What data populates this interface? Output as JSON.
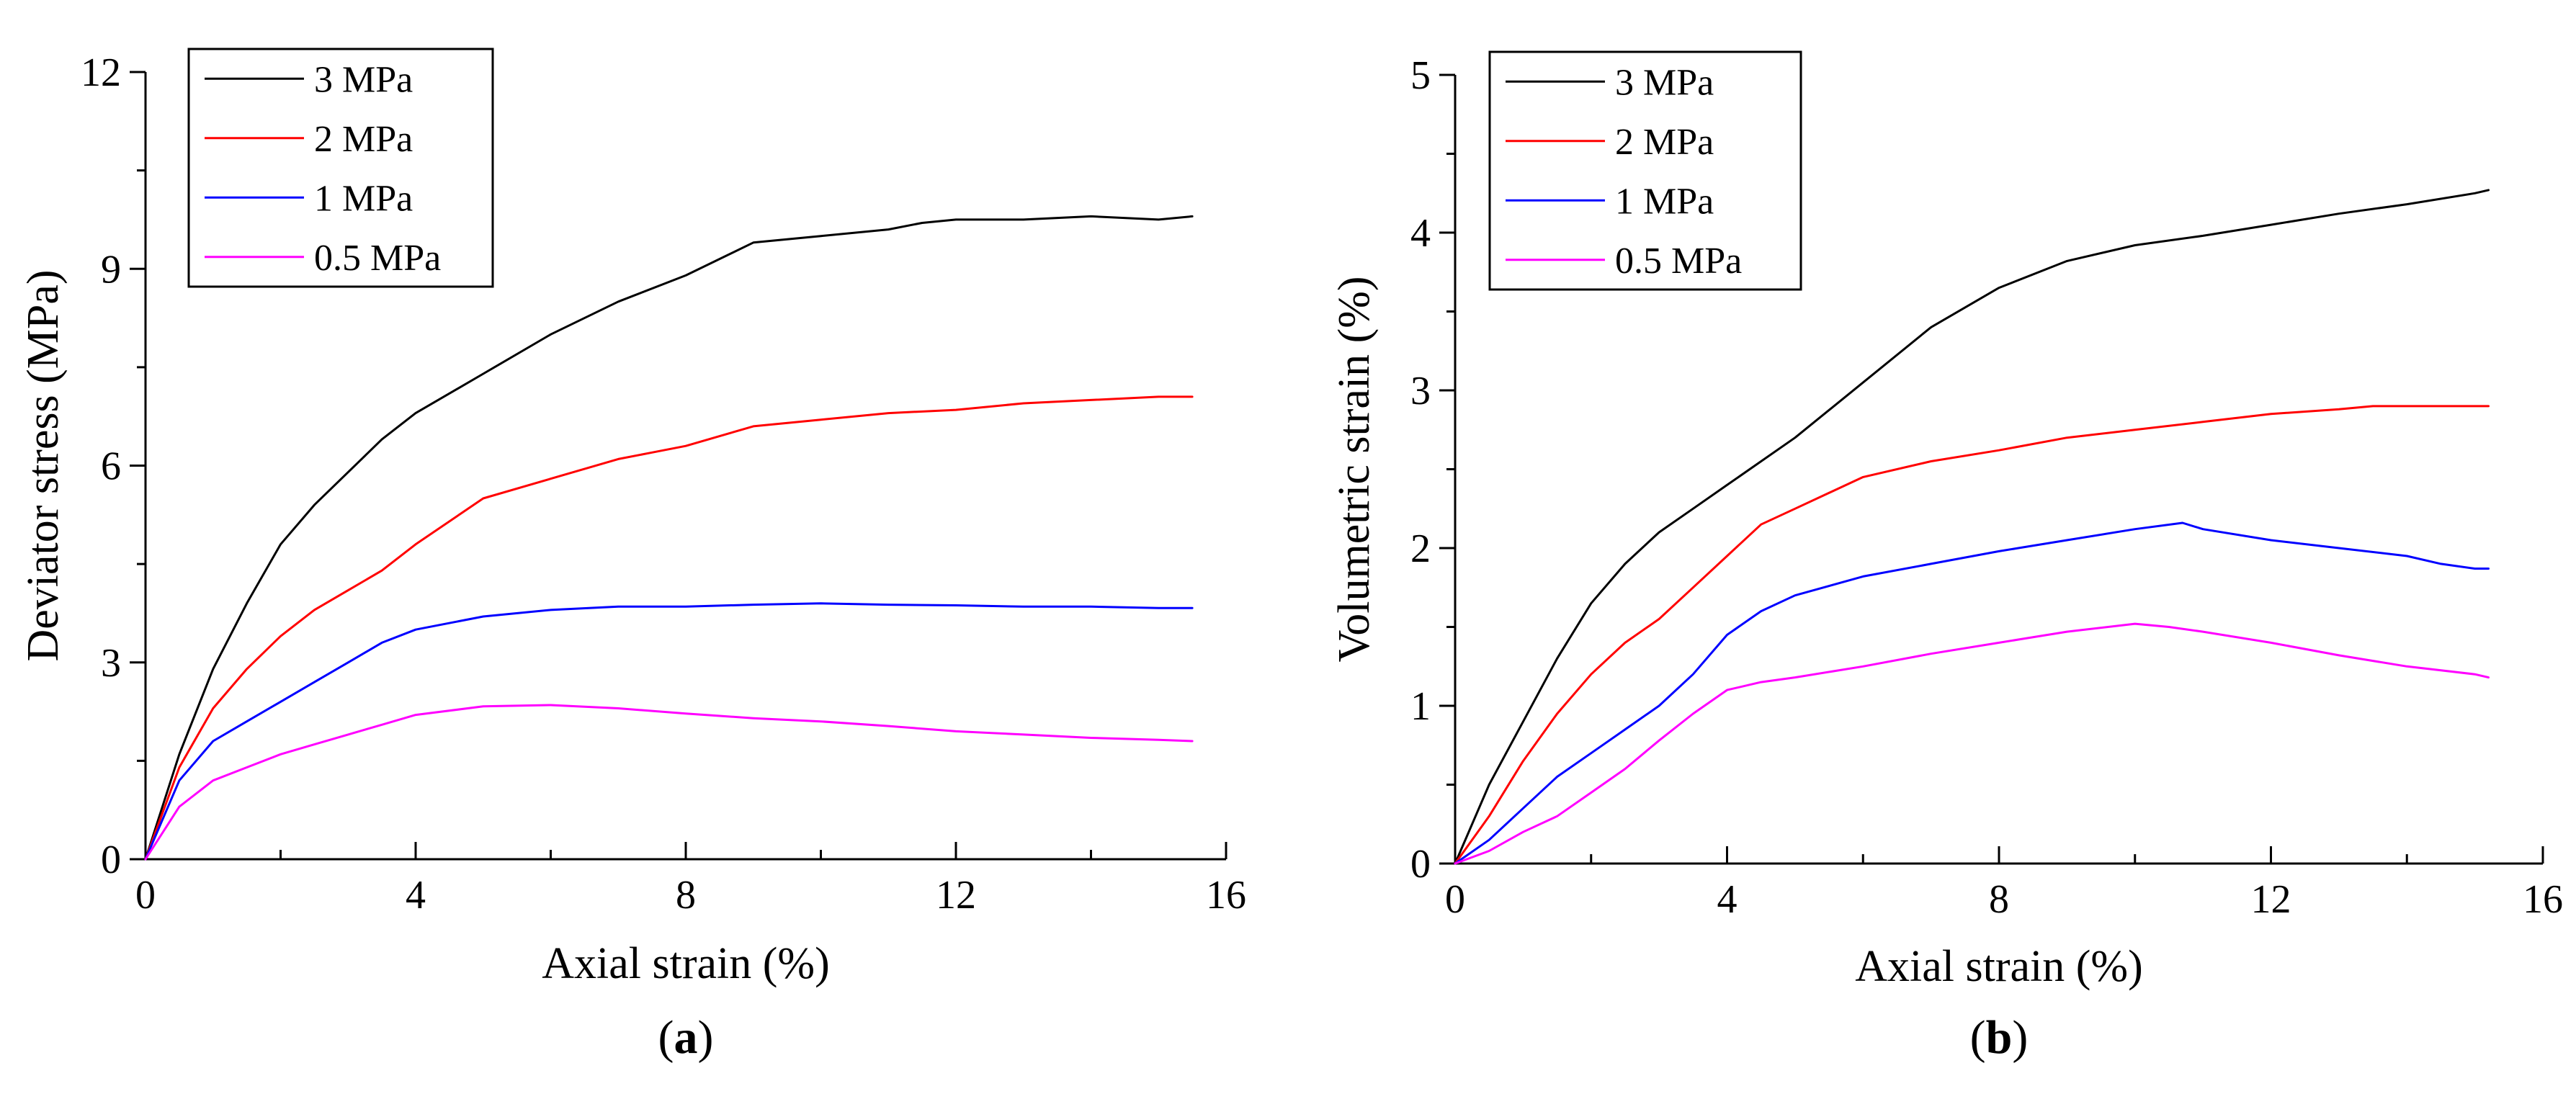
{
  "chart_data": [
    {
      "type": "line",
      "caption_letter": "a",
      "xlabel": "Axial strain (%)",
      "ylabel": "Deviator stress (MPa)",
      "xlim": [
        0,
        16
      ],
      "ylim": [
        0,
        12
      ],
      "xticks": [
        0,
        4,
        8,
        12,
        16
      ],
      "yticks": [
        0,
        3,
        6,
        9,
        12
      ],
      "legend_position": "top-left",
      "series": [
        {
          "name": "3 MPa",
          "color": "#000000",
          "x": [
            0,
            0.5,
            1,
            1.5,
            2,
            2.5,
            3,
            3.5,
            4,
            5,
            6,
            7,
            8,
            9,
            10,
            11,
            11.5,
            12,
            13,
            14,
            15,
            15.5
          ],
          "y": [
            0,
            1.6,
            2.9,
            3.9,
            4.8,
            5.4,
            5.9,
            6.4,
            6.8,
            7.4,
            8.0,
            8.5,
            8.9,
            9.4,
            9.5,
            9.6,
            9.7,
            9.75,
            9.75,
            9.8,
            9.75,
            9.8
          ]
        },
        {
          "name": "2 MPa",
          "color": "#ff0000",
          "x": [
            0,
            0.5,
            1,
            1.5,
            2,
            2.5,
            3,
            3.5,
            4,
            5,
            6,
            7,
            7.5,
            8,
            9,
            10,
            11,
            12,
            13,
            14,
            15,
            15.5
          ],
          "y": [
            0,
            1.4,
            2.3,
            2.9,
            3.4,
            3.8,
            4.1,
            4.4,
            4.8,
            5.5,
            5.8,
            6.1,
            6.2,
            6.3,
            6.6,
            6.7,
            6.8,
            6.85,
            6.95,
            7.0,
            7.05,
            7.05
          ]
        },
        {
          "name": "1 MPa",
          "color": "#0000ff",
          "x": [
            0,
            0.5,
            1,
            1.5,
            2,
            2.5,
            3,
            3.5,
            4,
            5,
            6,
            7,
            8,
            9,
            10,
            11,
            12,
            13,
            14,
            15,
            15.5
          ],
          "y": [
            0,
            1.2,
            1.8,
            2.1,
            2.4,
            2.7,
            3.0,
            3.3,
            3.5,
            3.7,
            3.8,
            3.85,
            3.85,
            3.88,
            3.9,
            3.88,
            3.87,
            3.85,
            3.85,
            3.83,
            3.83
          ]
        },
        {
          "name": "0.5 MPa",
          "color": "#ff00ff",
          "x": [
            0,
            0.5,
            1,
            1.5,
            2,
            2.5,
            3,
            3.5,
            4,
            5,
            6,
            7,
            8,
            9,
            10,
            11,
            12,
            13,
            14,
            15,
            15.5
          ],
          "y": [
            0,
            0.8,
            1.2,
            1.4,
            1.6,
            1.75,
            1.9,
            2.05,
            2.2,
            2.33,
            2.35,
            2.3,
            2.22,
            2.15,
            2.1,
            2.03,
            1.95,
            1.9,
            1.85,
            1.82,
            1.8
          ]
        }
      ]
    },
    {
      "type": "line",
      "caption_letter": "b",
      "xlabel": "Axial strain (%)",
      "ylabel": "Volumetric strain (%)",
      "xlim": [
        0,
        16
      ],
      "ylim": [
        0,
        5
      ],
      "xticks": [
        0,
        4,
        8,
        12,
        16
      ],
      "yticks": [
        0,
        1,
        2,
        3,
        4,
        5
      ],
      "legend_position": "top-left",
      "series": [
        {
          "name": "3 MPa",
          "color": "#000000",
          "x": [
            0,
            0.5,
            1,
            1.5,
            2,
            2.5,
            3,
            3.5,
            4,
            5,
            6,
            7,
            8,
            9,
            10,
            11,
            12,
            13,
            14,
            15,
            15.2
          ],
          "y": [
            0,
            0.5,
            0.9,
            1.3,
            1.65,
            1.9,
            2.1,
            2.25,
            2.4,
            2.7,
            3.05,
            3.4,
            3.65,
            3.82,
            3.92,
            3.98,
            4.05,
            4.12,
            4.18,
            4.25,
            4.27
          ]
        },
        {
          "name": "2 MPa",
          "color": "#ff0000",
          "x": [
            0,
            0.5,
            1,
            1.5,
            2,
            2.5,
            3,
            3.5,
            4,
            4.5,
            5,
            6,
            7,
            8,
            9,
            10,
            11,
            12,
            13,
            13.5,
            14,
            15,
            15.2
          ],
          "y": [
            0,
            0.3,
            0.65,
            0.95,
            1.2,
            1.4,
            1.55,
            1.75,
            1.95,
            2.15,
            2.25,
            2.45,
            2.55,
            2.62,
            2.7,
            2.75,
            2.8,
            2.85,
            2.88,
            2.9,
            2.9,
            2.9,
            2.9
          ]
        },
        {
          "name": "1 MPa",
          "color": "#0000ff",
          "x": [
            0,
            0.5,
            1,
            1.5,
            2,
            2.5,
            3,
            3.5,
            4,
            4.5,
            5,
            6,
            7,
            8,
            9,
            10,
            10.7,
            11,
            12,
            13,
            14,
            14.5,
            15,
            15.2
          ],
          "y": [
            0,
            0.15,
            0.35,
            0.55,
            0.7,
            0.85,
            1.0,
            1.2,
            1.45,
            1.6,
            1.7,
            1.82,
            1.9,
            1.98,
            2.05,
            2.12,
            2.16,
            2.12,
            2.05,
            2.0,
            1.95,
            1.9,
            1.87,
            1.87
          ]
        },
        {
          "name": "0.5 MPa",
          "color": "#ff00ff",
          "x": [
            0,
            0.5,
            1,
            1.5,
            2,
            2.5,
            3,
            3.5,
            4,
            4.5,
            5,
            6,
            7,
            8,
            9,
            10,
            10.5,
            11,
            12,
            13,
            14,
            15,
            15.2
          ],
          "y": [
            0,
            0.08,
            0.2,
            0.3,
            0.45,
            0.6,
            0.78,
            0.95,
            1.1,
            1.15,
            1.18,
            1.25,
            1.33,
            1.4,
            1.47,
            1.52,
            1.5,
            1.47,
            1.4,
            1.32,
            1.25,
            1.2,
            1.18
          ]
        }
      ]
    }
  ]
}
